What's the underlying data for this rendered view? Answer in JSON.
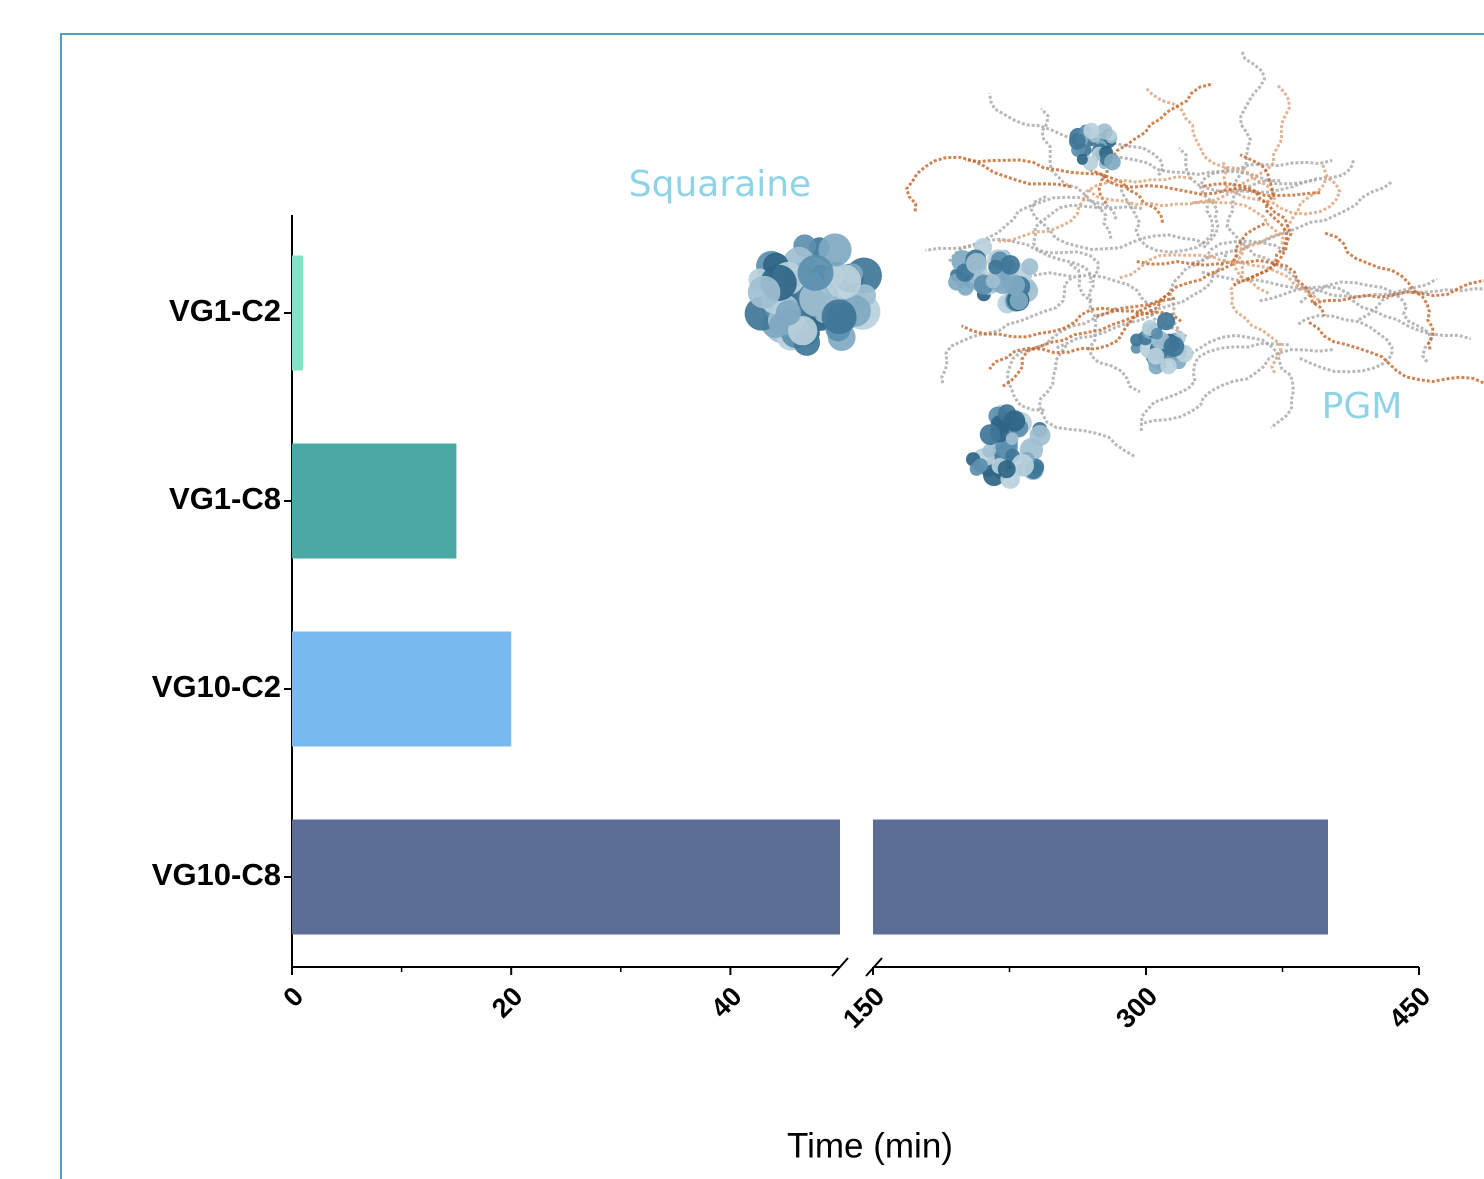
{
  "chart_data": {
    "type": "broken-hbar",
    "categories": [
      "VG1-C2",
      "VG1-C8",
      "VG10-C2",
      "VG10-C8"
    ],
    "values": [
      1,
      15,
      20,
      400
    ],
    "colors": [
      "#82e3c6",
      "#4ba9a5",
      "#78b9ef",
      "#5d6e96"
    ],
    "x_title": "Time (min)",
    "x_segments": [
      {
        "xlim": [
          0,
          50
        ],
        "xticks": [
          0,
          20,
          40
        ],
        "xminorticks": [
          10,
          30
        ]
      },
      {
        "xlim": [
          150,
          450
        ],
        "xticks": [
          150,
          300,
          450
        ],
        "xminorticks": [
          225,
          375
        ]
      }
    ],
    "annotations": [
      "Squaraine",
      "PGM"
    ]
  }
}
